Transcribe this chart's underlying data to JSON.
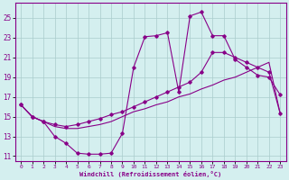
{
  "xlabel": "Windchill (Refroidissement éolien,°C)",
  "bg_color": "#d4efef",
  "line_color": "#880088",
  "grid_color": "#aacccc",
  "xlim": [
    -0.5,
    23.5
  ],
  "ylim": [
    10.5,
    26.5
  ],
  "xticks": [
    0,
    1,
    2,
    3,
    4,
    5,
    6,
    7,
    8,
    9,
    10,
    11,
    12,
    13,
    14,
    15,
    16,
    17,
    18,
    19,
    20,
    21,
    22,
    23
  ],
  "yticks": [
    11,
    13,
    15,
    17,
    19,
    21,
    23,
    25
  ],
  "line1_x": [
    0,
    1,
    2,
    3,
    4,
    5,
    6,
    7,
    8,
    9,
    10,
    11,
    12,
    13,
    14,
    15,
    16,
    17,
    18,
    19,
    20,
    21,
    22,
    23
  ],
  "line1_y": [
    16.2,
    15.0,
    14.5,
    13.0,
    12.3,
    11.3,
    11.2,
    11.2,
    11.3,
    13.3,
    20.0,
    23.1,
    23.2,
    23.5,
    17.5,
    25.2,
    25.6,
    23.2,
    23.2,
    20.8,
    20.0,
    19.2,
    19.0,
    17.2
  ],
  "line2_x": [
    0,
    1,
    2,
    3,
    4,
    5,
    6,
    7,
    8,
    9,
    10,
    11,
    12,
    13,
    14,
    15,
    16,
    17,
    18,
    19,
    20,
    21,
    22,
    23
  ],
  "line2_y": [
    16.2,
    15.0,
    14.5,
    14.2,
    14.0,
    14.2,
    14.5,
    14.8,
    15.2,
    15.5,
    16.0,
    16.5,
    17.0,
    17.5,
    18.0,
    18.5,
    19.5,
    21.5,
    21.5,
    21.0,
    20.5,
    20.0,
    19.5,
    15.3
  ],
  "line3_x": [
    0,
    1,
    2,
    3,
    4,
    5,
    6,
    7,
    8,
    9,
    10,
    11,
    12,
    13,
    14,
    15,
    16,
    17,
    18,
    19,
    20,
    21,
    22,
    23
  ],
  "line3_y": [
    16.2,
    15.0,
    14.5,
    14.0,
    13.8,
    13.8,
    14.0,
    14.2,
    14.5,
    15.0,
    15.5,
    15.8,
    16.2,
    16.5,
    17.0,
    17.3,
    17.8,
    18.2,
    18.7,
    19.0,
    19.5,
    20.0,
    20.5,
    15.3
  ]
}
